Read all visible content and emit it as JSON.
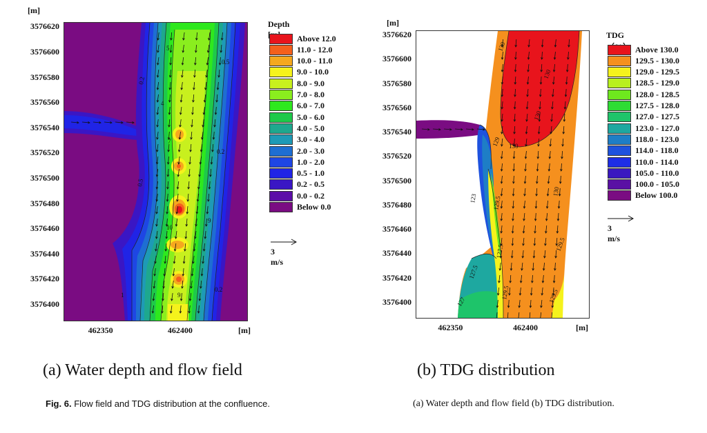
{
  "panel_a": {
    "y_unit": "[m]",
    "x_unit": "[m]",
    "y_ticks": [
      "3576620",
      "3576600",
      "3576580",
      "3576560",
      "3576540",
      "3576520",
      "3576500",
      "3576480",
      "3576460",
      "3576440",
      "3576420",
      "3576400"
    ],
    "x_ticks": [
      "462350",
      "462400"
    ],
    "legend_title": "Depth [m]",
    "legend": [
      {
        "label": "Above 12.0",
        "color": "#e8141c"
      },
      {
        "label": "11.0 - 12.0",
        "color": "#f4601c"
      },
      {
        "label": "10.0 - 11.0",
        "color": "#f5a81e"
      },
      {
        "label": "9.0 - 10.0",
        "color": "#f5f21c"
      },
      {
        "label": "8.0 - 9.0",
        "color": "#c8f01e"
      },
      {
        "label": "7.0 - 8.0",
        "color": "#8aee1e"
      },
      {
        "label": "6.0 - 7.0",
        "color": "#2ee81e"
      },
      {
        "label": "5.0 - 6.0",
        "color": "#1ec94a"
      },
      {
        "label": "4.0 - 5.0",
        "color": "#1ea88e"
      },
      {
        "label": "3.0 - 4.0",
        "color": "#1e9ab6"
      },
      {
        "label": "2.0 - 3.0",
        "color": "#1e6ed2"
      },
      {
        "label": "1.0 - 2.0",
        "color": "#1e46e4"
      },
      {
        "label": "0.5 - 1.0",
        "color": "#2024e6"
      },
      {
        "label": "0.2 - 0.5",
        "color": "#3a16c4"
      },
      {
        "label": "0.0 - 0.2",
        "color": "#5c0ea8"
      },
      {
        "label": "Below 0.0",
        "color": "#7a0c82"
      }
    ],
    "scale_label": "3 m/s",
    "caption": "(a) Water depth and flow field"
  },
  "panel_b": {
    "y_unit": "[m]",
    "x_unit": "[m]",
    "y_ticks": [
      "3576620",
      "3576600",
      "3576580",
      "3576560",
      "3576540",
      "3576520",
      "3576500",
      "3576480",
      "3576460",
      "3576440",
      "3576420",
      "3576400"
    ],
    "x_ticks": [
      "462350",
      "462400"
    ],
    "legend_title": "TDG（%）",
    "legend": [
      {
        "label": "Above 130.0",
        "color": "#e8141c"
      },
      {
        "label": "129.5 - 130.0",
        "color": "#f5901e"
      },
      {
        "label": "129.0 - 129.5",
        "color": "#f5f21c"
      },
      {
        "label": "128.5 - 129.0",
        "color": "#b8f01e"
      },
      {
        "label": "128.0 - 128.5",
        "color": "#6ee81e"
      },
      {
        "label": "127.5 - 128.0",
        "color": "#2edc34"
      },
      {
        "label": "127.0 - 127.5",
        "color": "#1ec46a"
      },
      {
        "label": "123.0 - 127.0",
        "color": "#1ea8a0"
      },
      {
        "label": "118.0 - 123.0",
        "color": "#1e7ec6"
      },
      {
        "label": "114.0 - 118.0",
        "color": "#1e52de"
      },
      {
        "label": "110.0 - 114.0",
        "color": "#1e2ee6"
      },
      {
        "label": "105.0 - 110.0",
        "color": "#3a18c0"
      },
      {
        "label": "100.0 - 105.0",
        "color": "#5a10a4"
      },
      {
        "label": "Below 100.0",
        "color": "#7a0c82"
      }
    ],
    "scale_label": "3 m/s",
    "caption": "(b) TDG distribution"
  },
  "figure_caption": {
    "fig_label": "Fig. 6.",
    "text": "Flow field and TDG distribution at the confluence.",
    "right_text": "(a) Water depth and flow field (b) TDG distribution."
  },
  "chart_data": [
    {
      "type": "heatmap",
      "title": "(a) Water depth and flow field",
      "xlabel": "[m]",
      "ylabel": "[m]",
      "xlim": [
        462325,
        462440
      ],
      "ylim": [
        3576388,
        3576624
      ],
      "x_ticks": [
        462350,
        462400
      ],
      "y_ticks": [
        3576620,
        3576600,
        3576580,
        3576560,
        3576540,
        3576520,
        3576500,
        3576480,
        3576460,
        3576440,
        3576420,
        3576400
      ],
      "legend_title": "Depth [m]",
      "legend_placement": "right",
      "contour_labels": [
        "0.2",
        "0.5",
        "1",
        "2",
        "3",
        "4",
        "5",
        "6",
        "7",
        "8",
        "9",
        "10"
      ],
      "deep_pools_y": [
        3576535,
        3576510,
        3576478,
        3576444,
        3576419
      ],
      "vector_scale": "3 m/s"
    },
    {
      "type": "heatmap",
      "title": "(b) TDG distribution",
      "xlabel": "[m]",
      "ylabel": "[m]",
      "xlim": [
        462325,
        462440
      ],
      "ylim": [
        3576388,
        3576624
      ],
      "x_ticks": [
        462350,
        462400
      ],
      "y_ticks": [
        3576620,
        3576600,
        3576580,
        3576560,
        3576540,
        3576520,
        3576500,
        3576480,
        3576460,
        3576440,
        3576420,
        3576400
      ],
      "legend_title": "TDG（%）",
      "legend_placement": "right",
      "contour_labels": [
        "130",
        "129.5",
        "123",
        "127.5",
        "129.5",
        "127"
      ],
      "vector_scale": "3 m/s"
    }
  ]
}
